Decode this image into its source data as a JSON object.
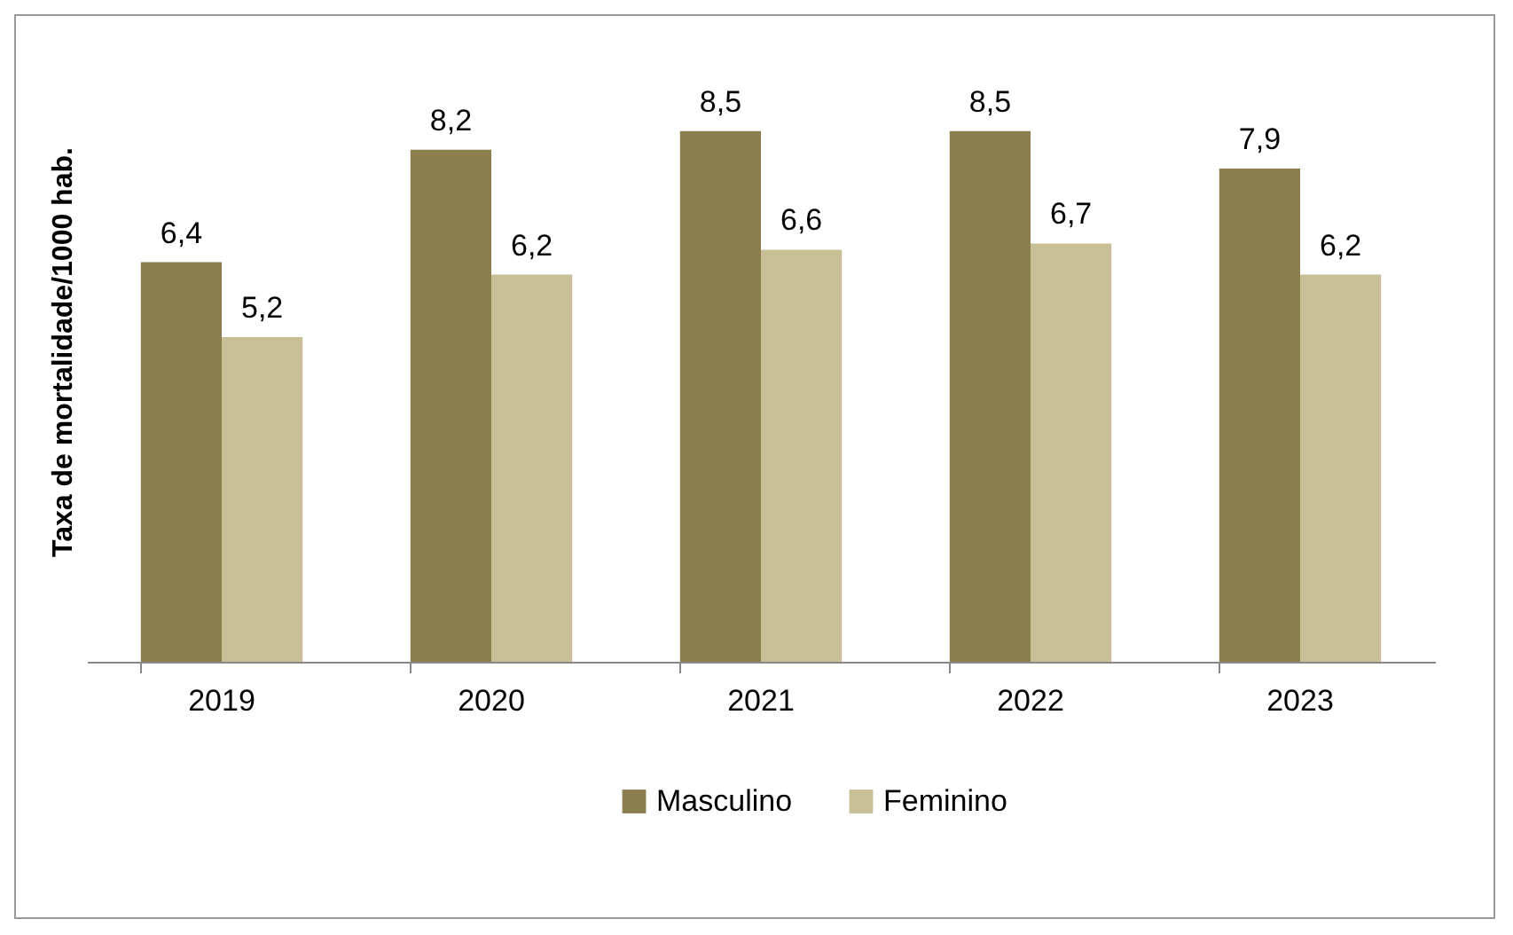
{
  "chart_data": {
    "type": "bar",
    "ylabel": "Taxa de mortalidade/1000 hab.",
    "categories": [
      "2019",
      "2020",
      "2021",
      "2022",
      "2023"
    ],
    "series": [
      {
        "name": "Masculino",
        "color": "#8b7f4f",
        "values": [
          6.4,
          8.2,
          8.5,
          8.5,
          7.9
        ],
        "value_labels": [
          "6,4",
          "8,2",
          "8,5",
          "8,5",
          "7,9"
        ]
      },
      {
        "name": "Feminino",
        "color": "#c8bf97",
        "values": [
          5.2,
          6.2,
          6.6,
          6.7,
          6.2
        ],
        "value_labels": [
          "5,2",
          "6,2",
          "6,6",
          "6,7",
          "6,2"
        ]
      }
    ],
    "grid": false,
    "legend": "bottom"
  }
}
